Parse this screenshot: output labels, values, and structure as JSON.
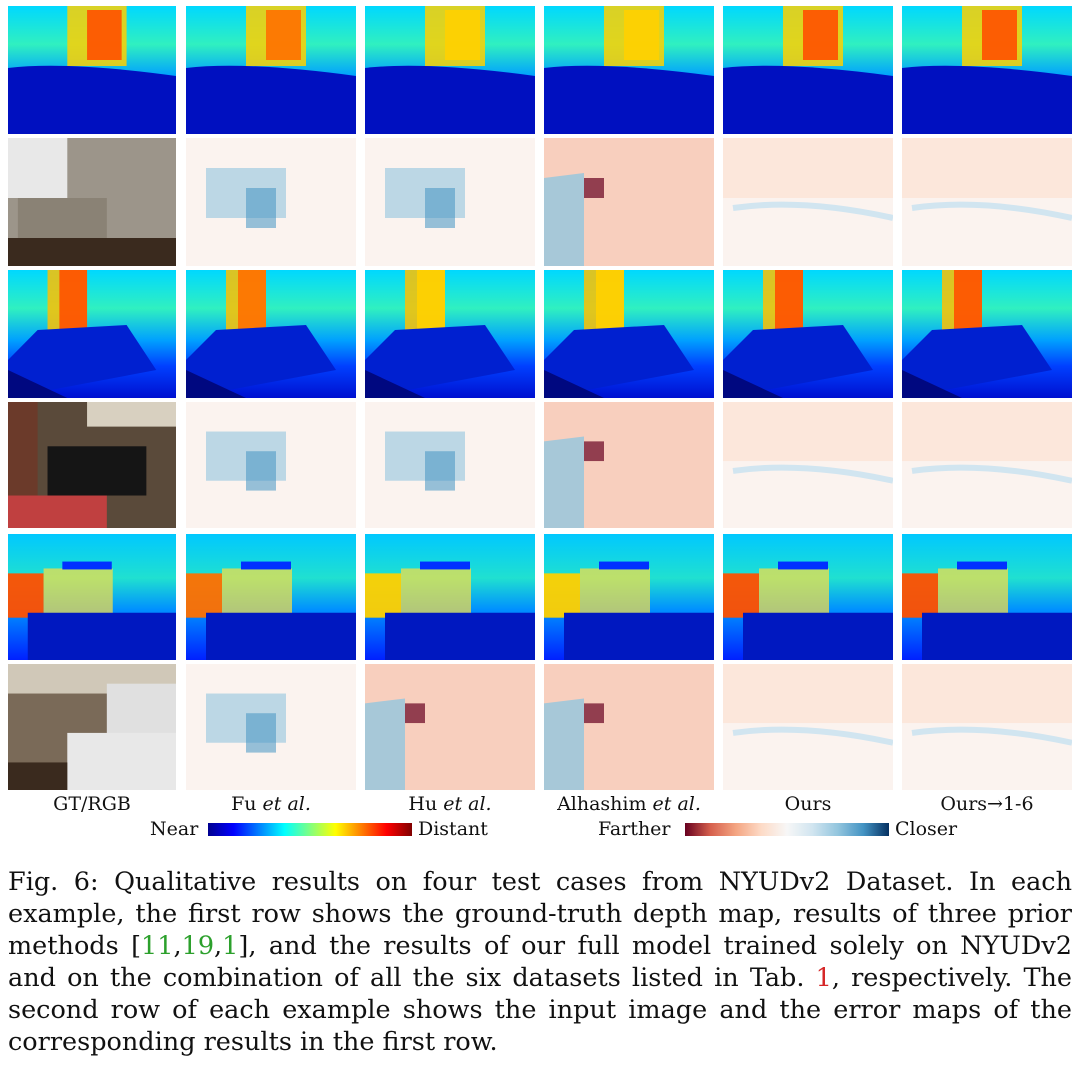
{
  "figure": {
    "column_labels": [
      {
        "main": "GT/RGB",
        "italic": ""
      },
      {
        "main": "Fu ",
        "italic": "et al."
      },
      {
        "main": "Hu ",
        "italic": "et al."
      },
      {
        "main": "Alhashim ",
        "italic": "et al."
      },
      {
        "main": "Ours",
        "italic": ""
      },
      {
        "main": "Ours→1-6",
        "italic": ""
      }
    ],
    "legend": {
      "depth_near": "Near",
      "depth_distant": "Distant",
      "error_farther": "Farther",
      "error_closer": "Closer"
    }
  },
  "colors": {
    "jet": [
      "#00008f",
      "#0000ff",
      "#0080ff",
      "#00ffff",
      "#80ff80",
      "#ffff00",
      "#ff8000",
      "#ff0000",
      "#800000"
    ],
    "error": [
      "#67001f",
      "#d6604d",
      "#f4a582",
      "#fddbc7",
      "#f7f7f7",
      "#d1e5f0",
      "#92c5de",
      "#4393c3",
      "#053061"
    ]
  },
  "caption": {
    "prefix": "Fig. 6: Qualitative results on four test cases from NYUDv2 Dataset. In each example, the first row shows the ground-truth depth map, results of three prior methods [",
    "ref1": "11",
    "sep1": ",",
    "ref2": "19",
    "sep2": ",",
    "ref3": "1",
    "middle": "], and the results of our full model trained solely on NYUDv2 and on the combination of all the six datasets listed in Tab. ",
    "ref4": "1",
    "suffix": ", respectively. The second row of each example shows the input image and the error maps of the corresponding results in the first row."
  }
}
